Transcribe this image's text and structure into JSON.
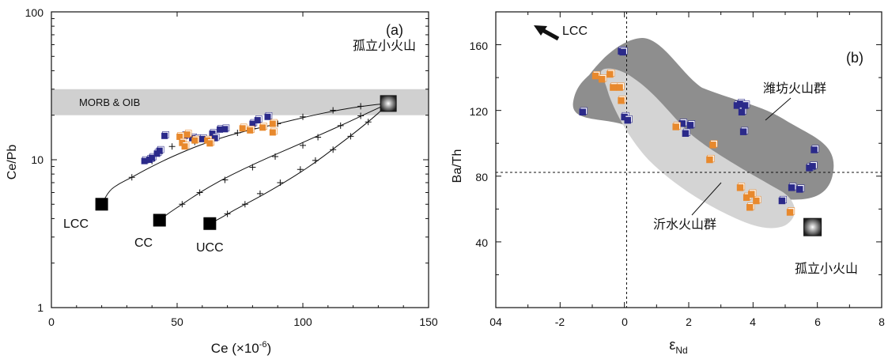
{
  "chart_data": [
    {
      "panel_label": "(a)",
      "type": "scatter",
      "xlabel_main": "Ce (×10",
      "xlabel_exp": "-6",
      "xlabel_close": ")",
      "ylabel": "Ce/Pb",
      "xlim": [
        0,
        150
      ],
      "ylim": [
        1,
        100
      ],
      "yscale": "log",
      "xticks": [
        0,
        50,
        100,
        150
      ],
      "yticks": [
        1,
        10,
        100
      ],
      "band": {
        "label": "MORB & OIB",
        "y_range": [
          20,
          30
        ],
        "color": "#d0d0d0"
      },
      "endmembers": [
        {
          "label": "LCC",
          "x": 20,
          "y": 5
        },
        {
          "label": "CC",
          "x": 43,
          "y": 3.9
        },
        {
          "label": "UCC",
          "x": 63,
          "y": 3.7
        }
      ],
      "isolated_volcano": {
        "label": "孤立小火山",
        "x": 134,
        "y": 24
      },
      "mixing_curves": [
        {
          "from": "LCC",
          "points": [
            [
              20,
              5
            ],
            [
              23,
              6.2
            ],
            [
              27,
              6.9
            ],
            [
              32,
              7.6
            ],
            [
              36,
              8.3
            ],
            [
              41,
              9.2
            ],
            [
              48,
              10.5
            ],
            [
              60,
              12.8
            ],
            [
              74,
              15.2
            ],
            [
              90,
              17.5
            ],
            [
              103,
              19.8
            ],
            [
              113,
              21.5
            ],
            [
              122,
              22.8
            ],
            [
              130,
              23.7
            ],
            [
              134,
              24
            ]
          ],
          "ticks": [
            [
              32,
              7.6
            ],
            [
              40,
              9.8
            ],
            [
              43,
              11
            ],
            [
              48,
              12.3
            ],
            [
              57,
              13.2
            ],
            [
              74,
              15.2
            ],
            [
              80,
              16.3
            ],
            [
              90,
              17.5
            ],
            [
              100,
              19.5
            ],
            [
              112,
              21.6
            ],
            [
              123,
              23
            ]
          ]
        },
        {
          "from": "CC",
          "points": [
            [
              43,
              3.9
            ],
            [
              47,
              4.4
            ],
            [
              52,
              5
            ],
            [
              59,
              6
            ],
            [
              67,
              7.2
            ],
            [
              76,
              8.6
            ],
            [
              86,
              10.3
            ],
            [
              97,
              12.4
            ],
            [
              107,
              14.8
            ],
            [
              117,
              17.6
            ],
            [
              126,
              20.8
            ],
            [
              134,
              24
            ]
          ],
          "ticks": [
            [
              52,
              5
            ],
            [
              59,
              6
            ],
            [
              69,
              7.3
            ],
            [
              80,
              8.9
            ],
            [
              89,
              10.5
            ],
            [
              100,
              12.5
            ],
            [
              106,
              14.2
            ],
            [
              115,
              17
            ],
            [
              123,
              19.8
            ]
          ]
        },
        {
          "from": "UCC",
          "points": [
            [
              63,
              3.7
            ],
            [
              67,
              4
            ],
            [
              73,
              4.6
            ],
            [
              80,
              5.3
            ],
            [
              88,
              6.3
            ],
            [
              97,
              7.8
            ],
            [
              105,
              9.6
            ],
            [
              112,
              11.8
            ],
            [
              119,
              14.5
            ],
            [
              125,
              17.5
            ],
            [
              130,
              20.6
            ],
            [
              134,
              24
            ]
          ],
          "ticks": [
            [
              70,
              4.3
            ],
            [
              77,
              5
            ],
            [
              83,
              5.9
            ],
            [
              91,
              7
            ],
            [
              99,
              8.6
            ],
            [
              105,
              9.9
            ],
            [
              112,
              11.7
            ],
            [
              119,
              14.4
            ],
            [
              126,
              18
            ]
          ]
        }
      ],
      "series": [
        {
          "name": "",
          "color": "#2b2a8a",
          "marker": "square",
          "points": [
            [
              37,
              9.8
            ],
            [
              39,
              10
            ],
            [
              40,
              10.3
            ],
            [
              42,
              11
            ],
            [
              43,
              11.5
            ],
            [
              45,
              14.5
            ],
            [
              53,
              14.5
            ],
            [
              56,
              14
            ],
            [
              58,
              13.8
            ],
            [
              60,
              13.8
            ],
            [
              64,
              15
            ],
            [
              65,
              14
            ],
            [
              67,
              16
            ],
            [
              69,
              16.1
            ],
            [
              80,
              17.5
            ],
            [
              82,
              18.5
            ],
            [
              86,
              19.5
            ]
          ]
        },
        {
          "name": "",
          "color": "#e8892d",
          "marker": "square",
          "points": [
            [
              51,
              14.3
            ],
            [
              52,
              13
            ],
            [
              53,
              12.3
            ],
            [
              54,
              14.8
            ],
            [
              57,
              13.5
            ],
            [
              62,
              13.5
            ],
            [
              63,
              12.9
            ],
            [
              76,
              16.3
            ],
            [
              79,
              15.8
            ],
            [
              84,
              16.5
            ],
            [
              88,
              17.5
            ],
            [
              88,
              15.3
            ]
          ]
        }
      ]
    },
    {
      "panel_label": "(b)",
      "type": "scatter",
      "xlabel_main": "ε",
      "xlabel_sub": "Nd",
      "ylabel": "Ba/Th",
      "xlim": [
        -4,
        8
      ],
      "ylim": [
        0,
        180
      ],
      "xticks": [
        -2,
        0,
        2,
        4,
        6,
        8
      ],
      "xtick_labels": [
        "-2",
        "0",
        "2",
        "4",
        "6",
        "8"
      ],
      "overlap_label": "04",
      "yticks": [
        40,
        80,
        120,
        160
      ],
      "reference_lines": {
        "x": 0,
        "y": 82
      },
      "lcc_arrow_label": "LCC",
      "isolated_volcano": {
        "label": "孤立小火山",
        "x": 5.85,
        "y": 49
      },
      "fields": [
        {
          "label": "潍坊火山群",
          "color": "#8e8e8e"
        },
        {
          "label": "沂水火山群",
          "color": "#d4d4d4"
        }
      ],
      "series": [
        {
          "name": "",
          "color": "#2b2a8a",
          "marker": "square",
          "points": [
            [
              -1.3,
              119
            ],
            [
              -0.1,
              156
            ],
            [
              -0.05,
              155.5
            ],
            [
              0,
              116
            ],
            [
              0.1,
              114
            ],
            [
              1.8,
              112
            ],
            [
              1.9,
              106
            ],
            [
              2.05,
              111
            ],
            [
              3.5,
              123
            ],
            [
              3.6,
              124
            ],
            [
              3.65,
              119
            ],
            [
              3.75,
              123
            ],
            [
              3.7,
              107
            ],
            [
              4.9,
              65
            ],
            [
              5.2,
              73
            ],
            [
              5.45,
              72
            ],
            [
              5.75,
              85
            ],
            [
              5.85,
              86
            ],
            [
              5.9,
              96
            ]
          ]
        },
        {
          "name": "",
          "color": "#e8892d",
          "marker": "square",
          "points": [
            [
              -0.9,
              141
            ],
            [
              -0.7,
              139
            ],
            [
              -0.45,
              142
            ],
            [
              -0.35,
              134
            ],
            [
              -0.15,
              134
            ],
            [
              -0.1,
              126
            ],
            [
              1.6,
              110
            ],
            [
              2.65,
              90
            ],
            [
              2.75,
              99
            ],
            [
              3.6,
              73
            ],
            [
              3.8,
              67
            ],
            [
              3.9,
              61
            ],
            [
              4.1,
              65
            ],
            [
              3.95,
              69
            ],
            [
              5.15,
              58
            ]
          ]
        }
      ]
    }
  ]
}
